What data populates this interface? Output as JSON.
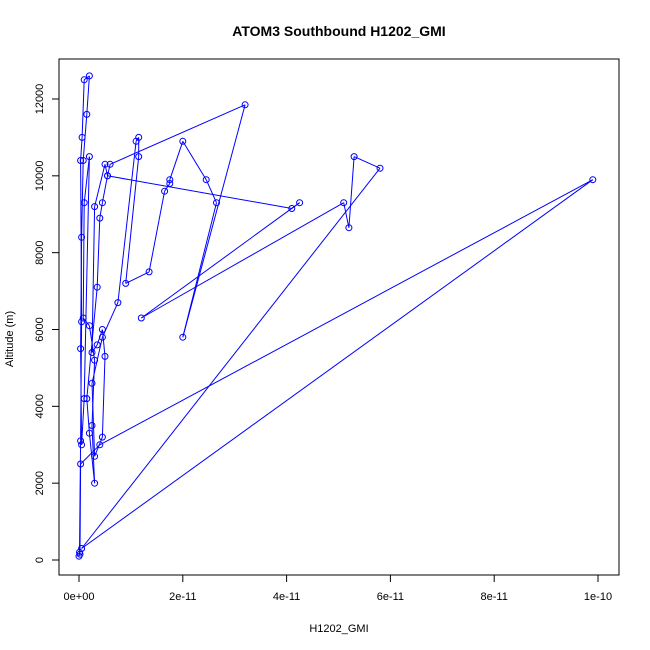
{
  "chart_data": {
    "type": "line",
    "title": "ATOM3 Southbound H1202_GMI",
    "xlabel": "H1202_GMI",
    "ylabel": "Altitude (m)",
    "xlim": [
      0,
      1e-10
    ],
    "ylim": [
      0,
      12500
    ],
    "x_ticks": [
      0,
      2e-11,
      4e-11,
      6e-11,
      8e-11,
      1e-10
    ],
    "x_tick_labels": [
      "0e+00",
      "2e-11",
      "4e-11",
      "6e-11",
      "8e-11",
      "1e-10"
    ],
    "y_ticks": [
      0,
      2000,
      4000,
      6000,
      8000,
      10000,
      12000
    ],
    "y_tick_labels": [
      "0",
      "2000",
      "4000",
      "6000",
      "8000",
      "10000",
      "12000"
    ],
    "grid": false,
    "series_color": "#0000ff",
    "series": [
      {
        "values": [
          [
            0.0,
            100
          ],
          [
            1e-13,
            200
          ],
          [
            3e-13,
            3100
          ],
          [
            5e-13,
            6200
          ],
          [
            3e-13,
            10400
          ],
          [
            6e-13,
            11000
          ],
          [
            1e-12,
            12500
          ],
          [
            2e-12,
            12600
          ],
          [
            1.5e-12,
            11600
          ],
          [
            8e-13,
            10400
          ],
          [
            5e-13,
            8400
          ],
          [
            3e-13,
            5500
          ],
          [
            5e-13,
            3000
          ],
          [
            1e-12,
            4200
          ],
          [
            2e-12,
            10500
          ],
          [
            1e-12,
            9300
          ],
          [
            8e-13,
            6300
          ],
          [
            2e-12,
            6100
          ],
          [
            3e-12,
            5200
          ],
          [
            2.5e-12,
            3500
          ],
          [
            3e-12,
            2000
          ],
          [
            2e-12,
            3300
          ],
          [
            1.5e-12,
            4200
          ],
          [
            3.5e-12,
            7100
          ],
          [
            4e-12,
            8900
          ],
          [
            4.5e-12,
            9300
          ],
          [
            5.5e-12,
            10000
          ],
          [
            5e-12,
            10300
          ],
          [
            3e-12,
            9200
          ],
          [
            2.5e-12,
            5400
          ],
          [
            3.5e-12,
            5600
          ],
          [
            4.5e-12,
            6000
          ],
          [
            5e-12,
            5300
          ],
          [
            4.5e-12,
            3200
          ],
          [
            3e-12,
            2700
          ],
          [
            2.5e-12,
            4600
          ],
          [
            4.5e-12,
            5800
          ],
          [
            7.5e-12,
            6700
          ],
          [
            1.1e-11,
            10900
          ],
          [
            1.15e-11,
            11000
          ],
          [
            1.15e-11,
            10500
          ],
          [
            9e-12,
            7200
          ],
          [
            1.35e-11,
            7500
          ],
          [
            1.65e-11,
            9600
          ],
          [
            1.75e-11,
            9800
          ],
          [
            1.75e-11,
            9900
          ],
          [
            2e-11,
            10900
          ],
          [
            2.45e-11,
            9900
          ],
          [
            2.65e-11,
            9300
          ],
          [
            2e-11,
            5800
          ],
          [
            3.2e-11,
            11850
          ],
          [
            6e-12,
            10300
          ],
          [
            5.5e-12,
            10000
          ],
          [
            4.1e-11,
            9150
          ],
          [
            4.25e-11,
            9300
          ],
          [
            1.2e-11,
            6300
          ],
          [
            5.1e-11,
            9300
          ],
          [
            5.2e-11,
            8650
          ],
          [
            5.3e-11,
            10500
          ],
          [
            5.8e-11,
            10200
          ],
          [
            5e-13,
            300
          ],
          [
            9.9e-11,
            9900
          ],
          [
            4e-12,
            3000
          ],
          [
            3e-13,
            2500
          ],
          [
            2e-13,
            150
          ]
        ]
      }
    ]
  }
}
